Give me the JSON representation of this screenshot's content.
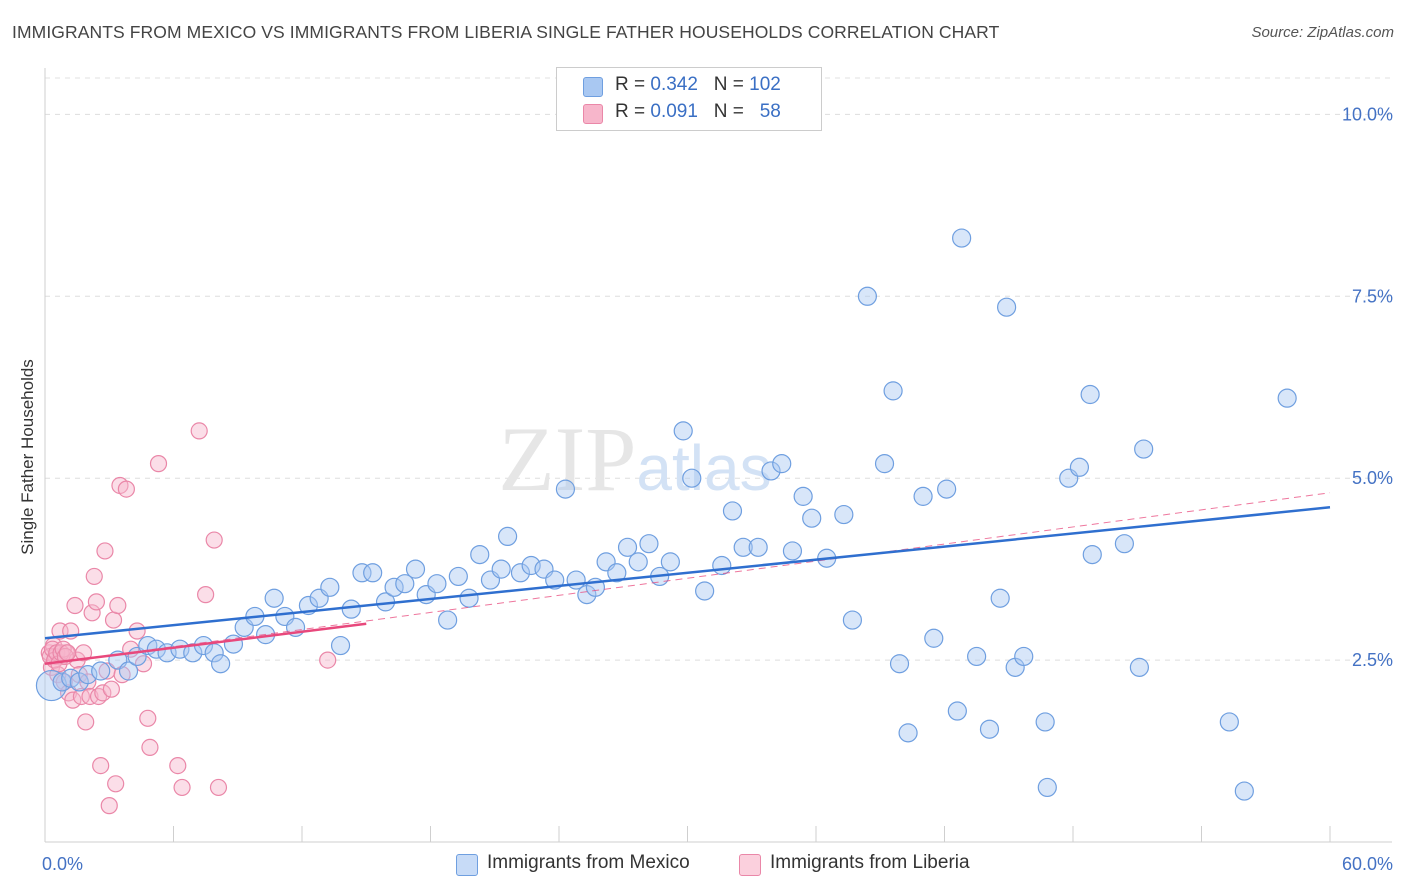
{
  "title": "IMMIGRANTS FROM MEXICO VS IMMIGRANTS FROM LIBERIA SINGLE FATHER HOUSEHOLDS CORRELATION CHART",
  "source": "Source: ZipAtlas.com",
  "watermark": "ZIPatlas",
  "legend": {
    "row1": {
      "r_label": "R =",
      "r_value": "0.342",
      "n_label": "N =",
      "n_value": "102"
    },
    "row2": {
      "r_label": "R =",
      "r_value": "0.091",
      "n_label": "N =",
      "n_value": "58"
    }
  },
  "bottom_legend": {
    "mexico": "Immigrants from Mexico",
    "liberia": "Immigrants from Liberia"
  },
  "colors": {
    "mexico_fill": "#a9c8f2",
    "mexico_stroke": "#6f9fe0",
    "mexico_line": "#2f6fcf",
    "liberia_fill": "#f7b6cb",
    "liberia_stroke": "#ea87a8",
    "liberia_line": "#e8487c",
    "axis_label": "#4472c4"
  },
  "chart_data": {
    "type": "scatter",
    "title": "IMMIGRANTS FROM MEXICO VS IMMIGRANTS FROM LIBERIA SINGLE FATHER HOUSEHOLDS CORRELATION CHART",
    "xlabel": "",
    "ylabel": "Single Father Households",
    "xlim": [
      0,
      60
    ],
    "ylim": [
      0,
      10.5
    ],
    "x_tick_labels": [
      "0.0%",
      "60.0%"
    ],
    "y_ticks": [
      2.5,
      5.0,
      7.5,
      10.0
    ],
    "y_tick_labels": [
      "2.5%",
      "5.0%",
      "7.5%",
      "10.0%"
    ],
    "grid": true,
    "legend_position": "top-center",
    "series": [
      {
        "name": "Immigrants from Mexico",
        "points": [
          [
            0.3,
            2.15
          ],
          [
            0.8,
            2.2
          ],
          [
            1.2,
            2.25
          ],
          [
            1.6,
            2.2
          ],
          [
            2.0,
            2.3
          ],
          [
            2.6,
            2.35
          ],
          [
            3.4,
            2.5
          ],
          [
            3.9,
            2.35
          ],
          [
            4.3,
            2.55
          ],
          [
            4.8,
            2.7
          ],
          [
            5.2,
            2.65
          ],
          [
            5.7,
            2.6
          ],
          [
            6.3,
            2.65
          ],
          [
            6.9,
            2.6
          ],
          [
            7.4,
            2.7
          ],
          [
            7.9,
            2.6
          ],
          [
            8.2,
            2.45
          ],
          [
            8.8,
            2.72
          ],
          [
            9.3,
            2.95
          ],
          [
            9.8,
            3.1
          ],
          [
            10.3,
            2.85
          ],
          [
            10.7,
            3.35
          ],
          [
            11.2,
            3.1
          ],
          [
            11.7,
            2.95
          ],
          [
            12.3,
            3.25
          ],
          [
            12.8,
            3.35
          ],
          [
            13.3,
            3.5
          ],
          [
            13.8,
            2.7
          ],
          [
            14.3,
            3.2
          ],
          [
            14.8,
            3.7
          ],
          [
            15.3,
            3.7
          ],
          [
            15.9,
            3.3
          ],
          [
            16.3,
            3.5
          ],
          [
            16.8,
            3.55
          ],
          [
            17.3,
            3.75
          ],
          [
            17.8,
            3.4
          ],
          [
            18.3,
            3.55
          ],
          [
            18.8,
            3.05
          ],
          [
            19.3,
            3.65
          ],
          [
            19.8,
            3.35
          ],
          [
            20.3,
            3.95
          ],
          [
            20.8,
            3.6
          ],
          [
            21.3,
            3.75
          ],
          [
            21.6,
            4.2
          ],
          [
            22.2,
            3.7
          ],
          [
            22.7,
            3.8
          ],
          [
            23.3,
            3.75
          ],
          [
            23.8,
            3.6
          ],
          [
            24.3,
            4.85
          ],
          [
            24.8,
            3.6
          ],
          [
            25.3,
            3.4
          ],
          [
            25.7,
            3.5
          ],
          [
            26.2,
            3.85
          ],
          [
            26.7,
            3.7
          ],
          [
            27.2,
            4.05
          ],
          [
            27.7,
            3.85
          ],
          [
            28.2,
            4.1
          ],
          [
            28.7,
            3.65
          ],
          [
            29.2,
            3.85
          ],
          [
            29.8,
            5.65
          ],
          [
            30.2,
            5.0
          ],
          [
            30.8,
            3.45
          ],
          [
            31.6,
            3.8
          ],
          [
            32.1,
            4.55
          ],
          [
            32.6,
            4.05
          ],
          [
            33.3,
            4.05
          ],
          [
            33.9,
            5.1
          ],
          [
            34.4,
            5.2
          ],
          [
            34.9,
            4.0
          ],
          [
            35.4,
            4.75
          ],
          [
            35.8,
            4.45
          ],
          [
            36.5,
            3.9
          ],
          [
            37.3,
            4.5
          ],
          [
            37.7,
            3.05
          ],
          [
            38.4,
            7.5
          ],
          [
            39.2,
            5.2
          ],
          [
            39.6,
            6.2
          ],
          [
            39.9,
            2.45
          ],
          [
            40.3,
            1.5
          ],
          [
            41.0,
            4.75
          ],
          [
            41.5,
            2.8
          ],
          [
            42.1,
            4.85
          ],
          [
            42.6,
            1.8
          ],
          [
            42.8,
            8.3
          ],
          [
            43.5,
            2.55
          ],
          [
            44.1,
            1.55
          ],
          [
            44.6,
            3.35
          ],
          [
            44.9,
            7.35
          ],
          [
            45.3,
            2.4
          ],
          [
            45.7,
            2.55
          ],
          [
            46.7,
            1.65
          ],
          [
            46.8,
            0.75
          ],
          [
            47.8,
            5.0
          ],
          [
            48.3,
            5.15
          ],
          [
            48.9,
            3.95
          ],
          [
            48.8,
            6.15
          ],
          [
            50.4,
            4.1
          ],
          [
            51.1,
            2.4
          ],
          [
            51.3,
            5.4
          ],
          [
            55.3,
            1.65
          ],
          [
            56.0,
            0.7
          ],
          [
            58.0,
            6.1
          ]
        ]
      },
      {
        "name": "Immigrants from Liberia",
        "points": [
          [
            0.2,
            2.6
          ],
          [
            0.3,
            2.4
          ],
          [
            0.4,
            2.7
          ],
          [
            0.5,
            2.55
          ],
          [
            0.6,
            2.3
          ],
          [
            0.7,
            2.9
          ],
          [
            0.8,
            2.55
          ],
          [
            0.9,
            2.2
          ],
          [
            1.0,
            2.6
          ],
          [
            1.1,
            2.05
          ],
          [
            1.2,
            2.9
          ],
          [
            1.3,
            1.95
          ],
          [
            1.4,
            3.25
          ],
          [
            1.5,
            2.5
          ],
          [
            1.6,
            2.3
          ],
          [
            1.7,
            2.0
          ],
          [
            1.8,
            2.6
          ],
          [
            1.9,
            1.65
          ],
          [
            2.0,
            2.2
          ],
          [
            2.1,
            2.0
          ],
          [
            2.2,
            3.15
          ],
          [
            2.3,
            3.65
          ],
          [
            2.4,
            3.3
          ],
          [
            2.5,
            2.0
          ],
          [
            2.6,
            1.05
          ],
          [
            2.7,
            2.05
          ],
          [
            2.8,
            4.0
          ],
          [
            2.9,
            2.35
          ],
          [
            3.0,
            0.5
          ],
          [
            3.1,
            2.1
          ],
          [
            3.2,
            3.05
          ],
          [
            3.3,
            0.8
          ],
          [
            3.4,
            3.25
          ],
          [
            3.5,
            4.9
          ],
          [
            3.6,
            2.3
          ],
          [
            3.8,
            4.85
          ],
          [
            4.0,
            2.65
          ],
          [
            4.3,
            2.9
          ],
          [
            4.6,
            2.45
          ],
          [
            4.8,
            1.7
          ],
          [
            4.9,
            1.3
          ],
          [
            5.3,
            5.2
          ],
          [
            6.2,
            1.05
          ],
          [
            6.4,
            0.75
          ],
          [
            7.2,
            5.65
          ],
          [
            7.5,
            3.4
          ],
          [
            7.9,
            4.15
          ],
          [
            8.1,
            0.75
          ],
          [
            13.2,
            2.5
          ],
          [
            0.25,
            2.55
          ],
          [
            0.35,
            2.65
          ],
          [
            0.45,
            2.5
          ],
          [
            0.55,
            2.6
          ],
          [
            0.65,
            2.45
          ],
          [
            0.75,
            2.6
          ],
          [
            0.85,
            2.65
          ],
          [
            0.95,
            2.55
          ],
          [
            1.05,
            2.6
          ]
        ]
      }
    ],
    "trend_lines": [
      {
        "name": "Immigrants from Mexico",
        "x": [
          0,
          60
        ],
        "y": [
          2.8,
          4.6
        ]
      },
      {
        "name": "Immigrants from Liberia",
        "x": [
          0,
          15
        ],
        "y": [
          2.45,
          3.0
        ]
      },
      {
        "name": "Immigrants from Liberia",
        "style": "dashed",
        "x": [
          0,
          60
        ],
        "y": [
          2.45,
          4.8
        ]
      }
    ]
  }
}
